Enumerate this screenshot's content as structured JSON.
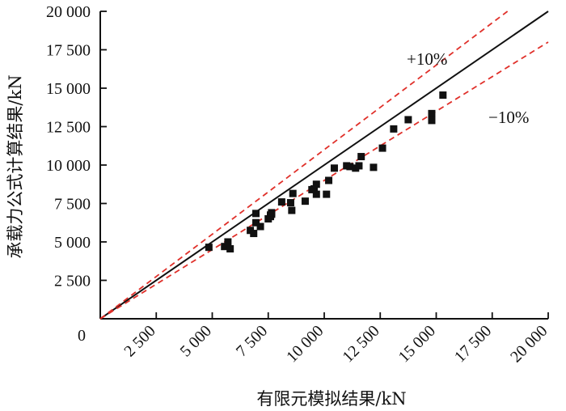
{
  "chart_data": {
    "type": "scatter",
    "xlabel": "有限元模拟结果/kN",
    "ylabel": "承载力公式计算结果/kN",
    "xlim": [
      0,
      20000
    ],
    "ylim": [
      0,
      20000
    ],
    "x_ticks": [
      2500,
      5000,
      7500,
      10000,
      12500,
      15000,
      17500,
      20000
    ],
    "x_tick_labels": [
      "2 500",
      "5 000",
      "7 500",
      "10 000",
      "12 500",
      "15 000",
      "17 500",
      "20 000"
    ],
    "y_ticks": [
      2500,
      5000,
      7500,
      10000,
      12500,
      15000,
      17500,
      20000
    ],
    "y_tick_labels": [
      "2 500",
      "5 000",
      "7 500",
      "10 000",
      "12 500",
      "15 000",
      "17 500",
      "20 000"
    ],
    "origin_label": "0",
    "grid": false,
    "legend": "none",
    "series": [
      {
        "marker": "square",
        "color": "#111111",
        "points": [
          [
            4850,
            4650
          ],
          [
            5550,
            4700
          ],
          [
            5800,
            4550
          ],
          [
            5700,
            5000
          ],
          [
            6700,
            5750
          ],
          [
            6850,
            5550
          ],
          [
            6950,
            6250
          ],
          [
            6950,
            6850
          ],
          [
            7150,
            6000
          ],
          [
            7500,
            6500
          ],
          [
            7600,
            6650
          ],
          [
            7650,
            6800
          ],
          [
            7600,
            6750
          ],
          [
            7650,
            6900
          ],
          [
            8100,
            7600
          ],
          [
            8500,
            7550
          ],
          [
            8550,
            7050
          ],
          [
            8600,
            8150
          ],
          [
            9150,
            7650
          ],
          [
            9450,
            8400
          ],
          [
            9550,
            8450
          ],
          [
            9650,
            8100
          ],
          [
            9650,
            8750
          ],
          [
            10100,
            8100
          ],
          [
            10200,
            9000
          ],
          [
            10450,
            9800
          ],
          [
            11000,
            9950
          ],
          [
            11150,
            9900
          ],
          [
            11400,
            9800
          ],
          [
            11550,
            9950
          ],
          [
            11650,
            10550
          ],
          [
            12200,
            9850
          ],
          [
            12600,
            11100
          ],
          [
            13100,
            12350
          ],
          [
            13750,
            12950
          ],
          [
            14800,
            13350
          ],
          [
            14800,
            12900
          ],
          [
            15300,
            14550
          ]
        ]
      }
    ],
    "reference_lines": [
      {
        "kind": "y=x",
        "style": "solid",
        "color": "#111111"
      },
      {
        "kind": "y=1.1x",
        "style": "dashed",
        "color": "#e0302a",
        "label": "+10%"
      },
      {
        "kind": "y=0.9x",
        "style": "dashed",
        "color": "#e0302a",
        "label": "−10%"
      }
    ]
  }
}
